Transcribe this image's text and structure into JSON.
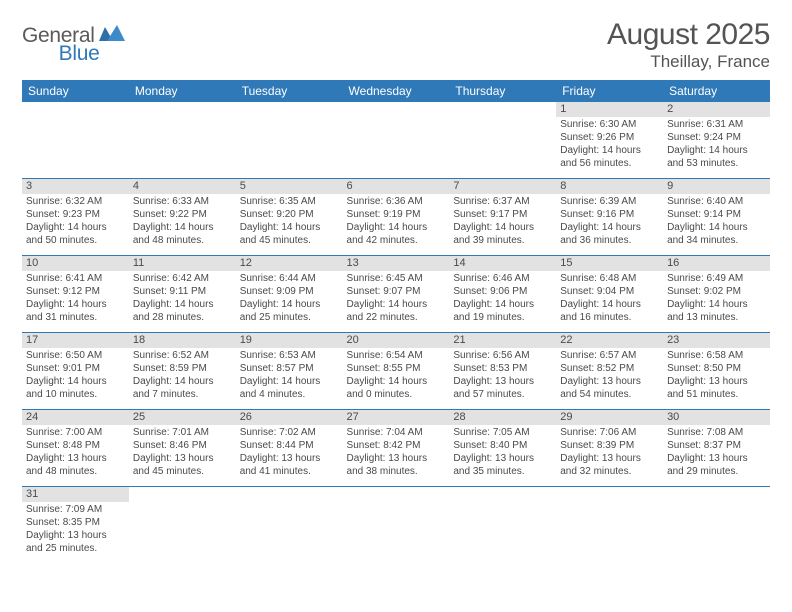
{
  "branding": {
    "word1": "General",
    "word2": "Blue",
    "color_general": "#5a5a5a",
    "color_blue": "#3079b8"
  },
  "header": {
    "title": "August 2025",
    "location": "Theillay, France"
  },
  "theme": {
    "header_bg": "#3079b8",
    "header_fg": "#ffffff",
    "daynum_bg": "#e2e2e2",
    "border_color": "#3079b8",
    "text_color": "#4a4a4a"
  },
  "day_headers": [
    "Sunday",
    "Monday",
    "Tuesday",
    "Wednesday",
    "Thursday",
    "Friday",
    "Saturday"
  ],
  "weeks": [
    [
      null,
      null,
      null,
      null,
      null,
      {
        "n": "1",
        "sr": "Sunrise: 6:30 AM",
        "ss": "Sunset: 9:26 PM",
        "d1": "Daylight: 14 hours",
        "d2": "and 56 minutes."
      },
      {
        "n": "2",
        "sr": "Sunrise: 6:31 AM",
        "ss": "Sunset: 9:24 PM",
        "d1": "Daylight: 14 hours",
        "d2": "and 53 minutes."
      }
    ],
    [
      {
        "n": "3",
        "sr": "Sunrise: 6:32 AM",
        "ss": "Sunset: 9:23 PM",
        "d1": "Daylight: 14 hours",
        "d2": "and 50 minutes."
      },
      {
        "n": "4",
        "sr": "Sunrise: 6:33 AM",
        "ss": "Sunset: 9:22 PM",
        "d1": "Daylight: 14 hours",
        "d2": "and 48 minutes."
      },
      {
        "n": "5",
        "sr": "Sunrise: 6:35 AM",
        "ss": "Sunset: 9:20 PM",
        "d1": "Daylight: 14 hours",
        "d2": "and 45 minutes."
      },
      {
        "n": "6",
        "sr": "Sunrise: 6:36 AM",
        "ss": "Sunset: 9:19 PM",
        "d1": "Daylight: 14 hours",
        "d2": "and 42 minutes."
      },
      {
        "n": "7",
        "sr": "Sunrise: 6:37 AM",
        "ss": "Sunset: 9:17 PM",
        "d1": "Daylight: 14 hours",
        "d2": "and 39 minutes."
      },
      {
        "n": "8",
        "sr": "Sunrise: 6:39 AM",
        "ss": "Sunset: 9:16 PM",
        "d1": "Daylight: 14 hours",
        "d2": "and 36 minutes."
      },
      {
        "n": "9",
        "sr": "Sunrise: 6:40 AM",
        "ss": "Sunset: 9:14 PM",
        "d1": "Daylight: 14 hours",
        "d2": "and 34 minutes."
      }
    ],
    [
      {
        "n": "10",
        "sr": "Sunrise: 6:41 AM",
        "ss": "Sunset: 9:12 PM",
        "d1": "Daylight: 14 hours",
        "d2": "and 31 minutes."
      },
      {
        "n": "11",
        "sr": "Sunrise: 6:42 AM",
        "ss": "Sunset: 9:11 PM",
        "d1": "Daylight: 14 hours",
        "d2": "and 28 minutes."
      },
      {
        "n": "12",
        "sr": "Sunrise: 6:44 AM",
        "ss": "Sunset: 9:09 PM",
        "d1": "Daylight: 14 hours",
        "d2": "and 25 minutes."
      },
      {
        "n": "13",
        "sr": "Sunrise: 6:45 AM",
        "ss": "Sunset: 9:07 PM",
        "d1": "Daylight: 14 hours",
        "d2": "and 22 minutes."
      },
      {
        "n": "14",
        "sr": "Sunrise: 6:46 AM",
        "ss": "Sunset: 9:06 PM",
        "d1": "Daylight: 14 hours",
        "d2": "and 19 minutes."
      },
      {
        "n": "15",
        "sr": "Sunrise: 6:48 AM",
        "ss": "Sunset: 9:04 PM",
        "d1": "Daylight: 14 hours",
        "d2": "and 16 minutes."
      },
      {
        "n": "16",
        "sr": "Sunrise: 6:49 AM",
        "ss": "Sunset: 9:02 PM",
        "d1": "Daylight: 14 hours",
        "d2": "and 13 minutes."
      }
    ],
    [
      {
        "n": "17",
        "sr": "Sunrise: 6:50 AM",
        "ss": "Sunset: 9:01 PM",
        "d1": "Daylight: 14 hours",
        "d2": "and 10 minutes."
      },
      {
        "n": "18",
        "sr": "Sunrise: 6:52 AM",
        "ss": "Sunset: 8:59 PM",
        "d1": "Daylight: 14 hours",
        "d2": "and 7 minutes."
      },
      {
        "n": "19",
        "sr": "Sunrise: 6:53 AM",
        "ss": "Sunset: 8:57 PM",
        "d1": "Daylight: 14 hours",
        "d2": "and 4 minutes."
      },
      {
        "n": "20",
        "sr": "Sunrise: 6:54 AM",
        "ss": "Sunset: 8:55 PM",
        "d1": "Daylight: 14 hours",
        "d2": "and 0 minutes."
      },
      {
        "n": "21",
        "sr": "Sunrise: 6:56 AM",
        "ss": "Sunset: 8:53 PM",
        "d1": "Daylight: 13 hours",
        "d2": "and 57 minutes."
      },
      {
        "n": "22",
        "sr": "Sunrise: 6:57 AM",
        "ss": "Sunset: 8:52 PM",
        "d1": "Daylight: 13 hours",
        "d2": "and 54 minutes."
      },
      {
        "n": "23",
        "sr": "Sunrise: 6:58 AM",
        "ss": "Sunset: 8:50 PM",
        "d1": "Daylight: 13 hours",
        "d2": "and 51 minutes."
      }
    ],
    [
      {
        "n": "24",
        "sr": "Sunrise: 7:00 AM",
        "ss": "Sunset: 8:48 PM",
        "d1": "Daylight: 13 hours",
        "d2": "and 48 minutes."
      },
      {
        "n": "25",
        "sr": "Sunrise: 7:01 AM",
        "ss": "Sunset: 8:46 PM",
        "d1": "Daylight: 13 hours",
        "d2": "and 45 minutes."
      },
      {
        "n": "26",
        "sr": "Sunrise: 7:02 AM",
        "ss": "Sunset: 8:44 PM",
        "d1": "Daylight: 13 hours",
        "d2": "and 41 minutes."
      },
      {
        "n": "27",
        "sr": "Sunrise: 7:04 AM",
        "ss": "Sunset: 8:42 PM",
        "d1": "Daylight: 13 hours",
        "d2": "and 38 minutes."
      },
      {
        "n": "28",
        "sr": "Sunrise: 7:05 AM",
        "ss": "Sunset: 8:40 PM",
        "d1": "Daylight: 13 hours",
        "d2": "and 35 minutes."
      },
      {
        "n": "29",
        "sr": "Sunrise: 7:06 AM",
        "ss": "Sunset: 8:39 PM",
        "d1": "Daylight: 13 hours",
        "d2": "and 32 minutes."
      },
      {
        "n": "30",
        "sr": "Sunrise: 7:08 AM",
        "ss": "Sunset: 8:37 PM",
        "d1": "Daylight: 13 hours",
        "d2": "and 29 minutes."
      }
    ],
    [
      {
        "n": "31",
        "sr": "Sunrise: 7:09 AM",
        "ss": "Sunset: 8:35 PM",
        "d1": "Daylight: 13 hours",
        "d2": "and 25 minutes."
      },
      null,
      null,
      null,
      null,
      null,
      null
    ]
  ]
}
